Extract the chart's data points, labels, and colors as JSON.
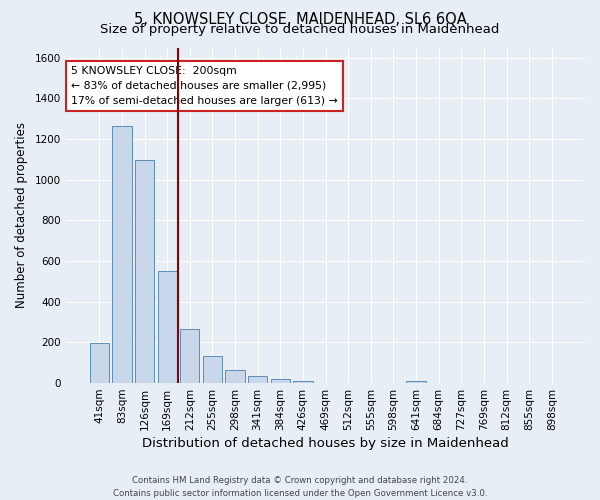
{
  "title": "5, KNOWSLEY CLOSE, MAIDENHEAD, SL6 6QA",
  "subtitle": "Size of property relative to detached houses in Maidenhead",
  "xlabel": "Distribution of detached houses by size in Maidenhead",
  "ylabel": "Number of detached properties",
  "footer_line1": "Contains HM Land Registry data © Crown copyright and database right 2024.",
  "footer_line2": "Contains public sector information licensed under the Open Government Licence v3.0.",
  "bar_labels": [
    "41sqm",
    "83sqm",
    "126sqm",
    "169sqm",
    "212sqm",
    "255sqm",
    "298sqm",
    "341sqm",
    "384sqm",
    "426sqm",
    "469sqm",
    "512sqm",
    "555sqm",
    "598sqm",
    "641sqm",
    "684sqm",
    "727sqm",
    "769sqm",
    "812sqm",
    "855sqm",
    "898sqm"
  ],
  "bar_values": [
    197,
    1265,
    1097,
    553,
    265,
    133,
    62,
    33,
    18,
    10,
    0,
    0,
    0,
    0,
    10,
    0,
    0,
    0,
    0,
    0,
    0
  ],
  "bar_color": "#c8d8ea",
  "bar_edgecolor": "#5b8db8",
  "vline_color": "#8b0000",
  "annotation_line1": "5 KNOWSLEY CLOSE:  200sqm",
  "annotation_line2": "← 83% of detached houses are smaller (2,995)",
  "annotation_line3": "17% of semi-detached houses are larger (613) →",
  "ylim": [
    0,
    1650
  ],
  "yticks": [
    0,
    200,
    400,
    600,
    800,
    1000,
    1200,
    1400,
    1600
  ],
  "background_color": "#e8eef5",
  "plot_bg_color": "#e8eef5",
  "grid_color": "#ffffff",
  "title_fontsize": 10.5,
  "subtitle_fontsize": 9.5,
  "xlabel_fontsize": 9.5,
  "ylabel_fontsize": 8.5,
  "tick_fontsize": 7.5,
  "annotation_fontsize": 7.8,
  "footer_fontsize": 6.2
}
